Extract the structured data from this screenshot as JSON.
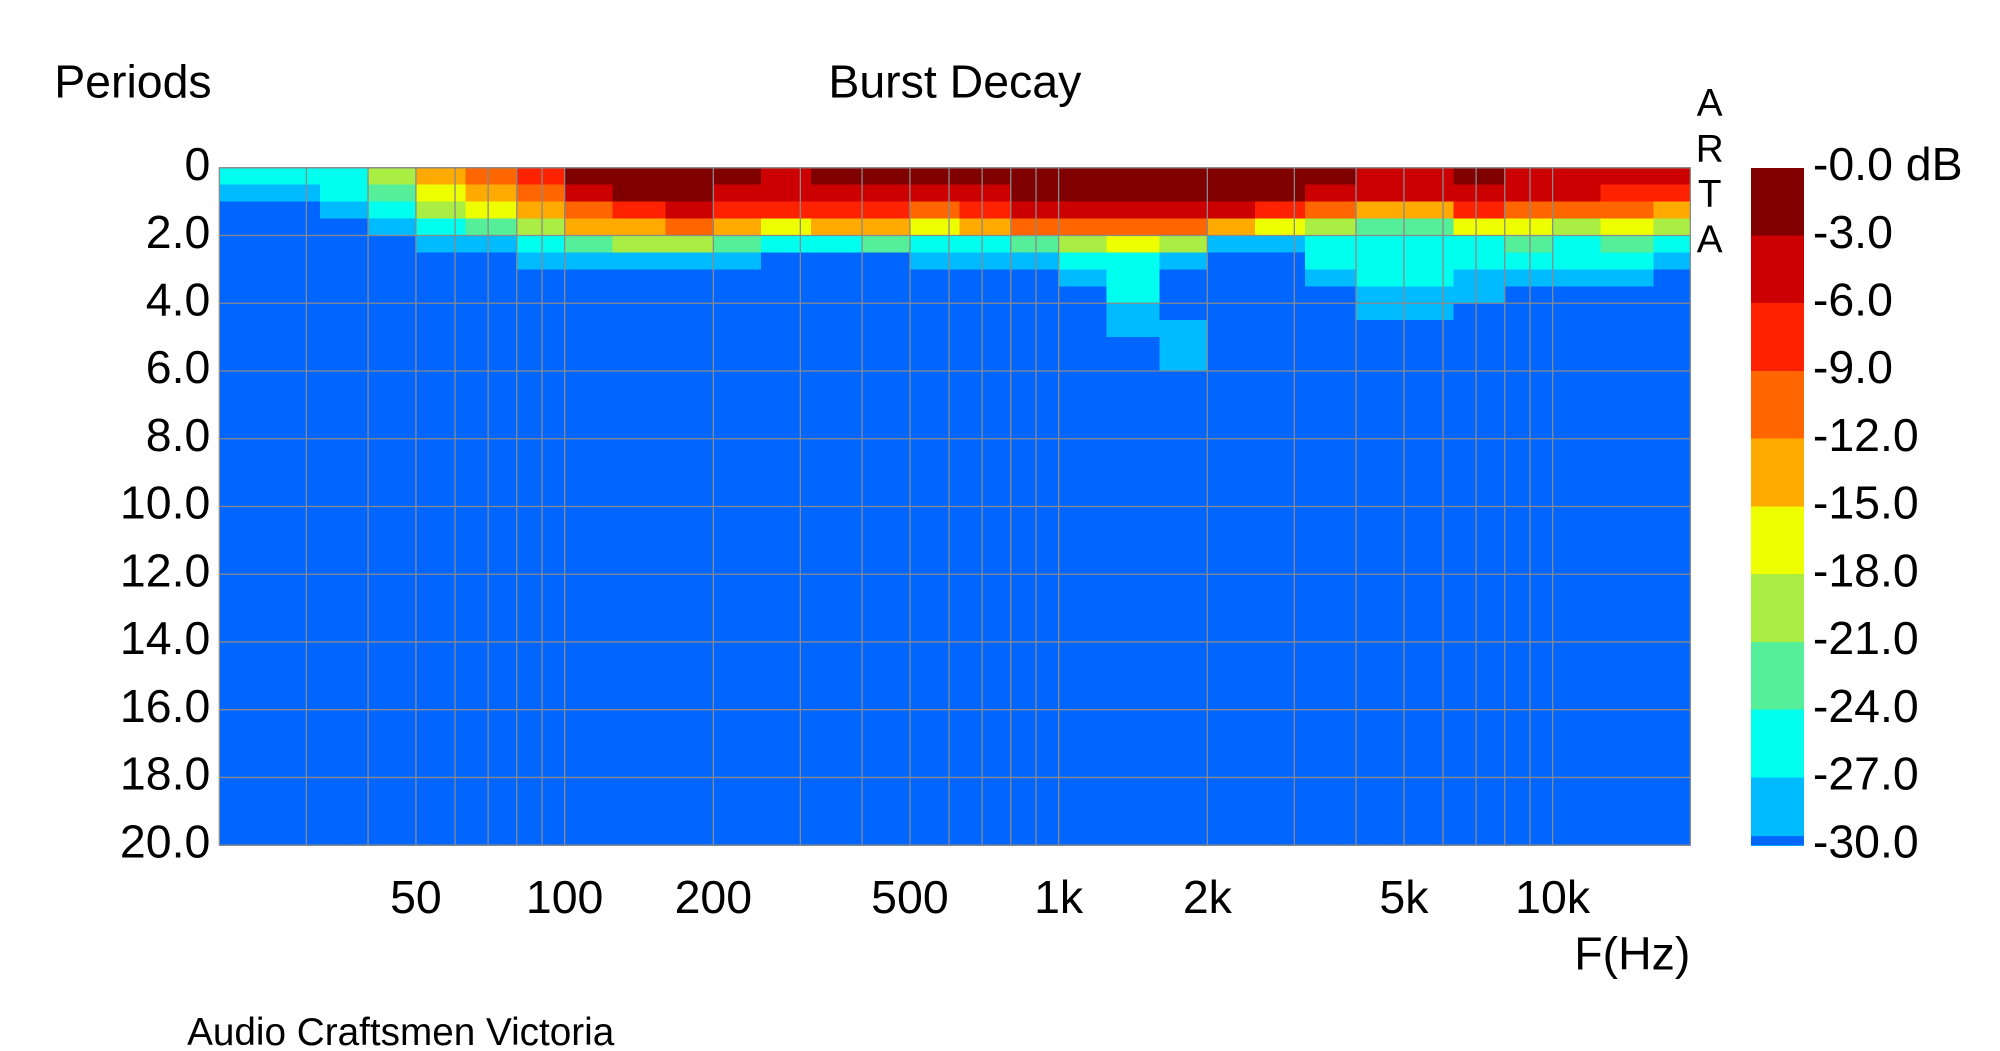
{
  "chart_data": {
    "type": "heatmap",
    "title": "Burst Decay",
    "y_label": "Periods",
    "x_label": "F(Hz)",
    "watermark": "ARTA",
    "footer": "Audio Craftsmen Victoria",
    "x_log": true,
    "xlim": [
      20,
      19000
    ],
    "xticks": [
      50,
      100,
      200,
      500,
      {
        "value": 1000,
        "label": "1k"
      },
      {
        "value": 2000,
        "label": "2k"
      },
      {
        "value": 5000,
        "label": "5k"
      },
      {
        "value": 10000,
        "label": "10k"
      }
    ],
    "x_minor_grid": [
      30,
      40,
      60,
      70,
      80,
      90,
      300,
      400,
      600,
      700,
      800,
      900,
      3000,
      4000,
      6000,
      7000,
      8000,
      9000
    ],
    "ylim": [
      20,
      0
    ],
    "yticks": [
      0,
      {
        "value": 2,
        "label": "2.0"
      },
      {
        "value": 4,
        "label": "4.0"
      },
      {
        "value": 6,
        "label": "6.0"
      },
      {
        "value": 8,
        "label": "8.0"
      },
      {
        "value": 10,
        "label": "10.0"
      },
      {
        "value": 12,
        "label": "12.0"
      },
      {
        "value": 14,
        "label": "14.0"
      },
      {
        "value": 16,
        "label": "16.0"
      },
      {
        "value": 18,
        "label": "18.0"
      },
      {
        "value": 20,
        "label": "20.0"
      }
    ],
    "grid": true,
    "x_bins": [
      20,
      25,
      32,
      40,
      50,
      63,
      80,
      100,
      125,
      160,
      200,
      250,
      315,
      400,
      500,
      630,
      800,
      1000,
      1250,
      1600,
      2000,
      2500,
      3150,
      4000,
      5000,
      6300,
      8000,
      10000,
      12500,
      16000,
      19000
    ],
    "y_bins": [
      0,
      0.5,
      1,
      1.5,
      2,
      2.5,
      3,
      3.5,
      4,
      4.5,
      5,
      5.5,
      6,
      20
    ],
    "z": [
      [
        -25,
        -28,
        -33,
        -33,
        -33,
        -33,
        -33,
        -33,
        -33,
        -33,
        -33,
        -33,
        -33
      ],
      [
        -25,
        -28,
        -33,
        -33,
        -33,
        -33,
        -33,
        -33,
        -33,
        -33,
        -33,
        -33,
        -33
      ],
      [
        -25,
        -25,
        -28,
        -33,
        -33,
        -33,
        -33,
        -33,
        -33,
        -33,
        -33,
        -33,
        -33
      ],
      [
        -19,
        -22,
        -25,
        -28,
        -33,
        -33,
        -33,
        -33,
        -33,
        -33,
        -33,
        -33,
        -33
      ],
      [
        -14,
        -16,
        -19,
        -24,
        -28,
        -33,
        -33,
        -33,
        -33,
        -33,
        -33,
        -33,
        -33
      ],
      [
        -10,
        -13,
        -16,
        -22,
        -27,
        -33,
        -33,
        -33,
        -33,
        -33,
        -33,
        -33,
        -33
      ],
      [
        -7,
        -9,
        -13,
        -18,
        -25,
        -28,
        -33,
        -33,
        -33,
        -33,
        -33,
        -33,
        -33
      ],
      [
        -2,
        -5,
        -9,
        -14,
        -22,
        -28,
        -33,
        -33,
        -33,
        -33,
        -33,
        -33,
        -33
      ],
      [
        -1,
        -2,
        -6,
        -12,
        -20,
        -27,
        -33,
        -33,
        -33,
        -33,
        -33,
        -33,
        -33
      ],
      [
        -1,
        -2,
        -5,
        -11,
        -20,
        -27,
        -33,
        -33,
        -33,
        -33,
        -33,
        -33,
        -33
      ],
      [
        -2,
        -4,
        -7,
        -13,
        -22,
        -28,
        -33,
        -33,
        -33,
        -33,
        -33,
        -33,
        -33
      ],
      [
        -4,
        -5,
        -8,
        -15,
        -26,
        -33,
        -33,
        -33,
        -33,
        -33,
        -33,
        -33,
        -33
      ],
      [
        -2,
        -4,
        -7,
        -13,
        -24,
        -33,
        -33,
        -33,
        -33,
        -33,
        -33,
        -33,
        -33
      ],
      [
        -1,
        -4,
        -6,
        -12,
        -22,
        -33,
        -33,
        -33,
        -33,
        -33,
        -33,
        -33,
        -33
      ],
      [
        -2,
        -5,
        -9,
        -16,
        -25,
        -28,
        -33,
        -33,
        -33,
        -33,
        -33,
        -33,
        -33
      ],
      [
        -1,
        -3,
        -7,
        -14,
        -24,
        -28,
        -33,
        -33,
        -33,
        -33,
        -33,
        -33,
        -33
      ],
      [
        -1,
        -2,
        -5,
        -11,
        -22,
        -27,
        -33,
        -33,
        -33,
        -33,
        -33,
        -33,
        -33
      ],
      [
        -1,
        -1,
        -4,
        -9,
        -18,
        -25,
        -28,
        -33,
        -33,
        -33,
        -33,
        -33,
        -33
      ],
      [
        -1,
        -2,
        -5,
        -10,
        -17,
        -24,
        -26,
        -26,
        -28,
        -28,
        -33,
        -33,
        -33
      ],
      [
        -1,
        -2,
        -4,
        -9,
        -20,
        -28,
        -33,
        -33,
        -33,
        -28,
        -28,
        -28,
        -33
      ],
      [
        -1,
        -2,
        -5,
        -12,
        -27,
        -33,
        -33,
        -33,
        -33,
        -33,
        -33,
        -33,
        -33
      ],
      [
        -1,
        -2,
        -6,
        -15,
        -28,
        -33,
        -33,
        -33,
        -33,
        -33,
        -33,
        -33,
        -33
      ],
      [
        -2,
        -4,
        -9,
        -18,
        -25,
        -26,
        -28,
        -33,
        -33,
        -33,
        -33,
        -33,
        -33
      ],
      [
        -3,
        -5,
        -12,
        -21,
        -25,
        -26,
        -25,
        -28,
        -28,
        -33,
        -33,
        -33,
        -33
      ],
      [
        -3,
        -5,
        -13,
        -22,
        -25,
        -26,
        -25,
        -28,
        -28,
        -33,
        -33,
        -33,
        -33
      ],
      [
        -2,
        -4,
        -8,
        -16,
        -24,
        -25,
        -27,
        -28,
        -33,
        -33,
        -33,
        -33,
        -33
      ],
      [
        -3,
        -5,
        -9,
        -17,
        -23,
        -25,
        -28,
        -33,
        -33,
        -33,
        -33,
        -33,
        -33
      ],
      [
        -3,
        -5,
        -10,
        -18,
        -24,
        -26,
        -28,
        -33,
        -33,
        -33,
        -33,
        -33,
        -33
      ],
      [
        -4,
        -6,
        -10,
        -17,
        -22,
        -26,
        -28,
        -33,
        -33,
        -33,
        -33,
        -33,
        -33
      ],
      [
        -5,
        -7,
        -12,
        -20,
        -26,
        -28,
        -33,
        -33,
        -33,
        -33,
        -33,
        -33,
        -33
      ]
    ],
    "colorbar": {
      "ticks": [
        {
          "value": 0,
          "label": "-0.0 dB"
        },
        {
          "value": -3,
          "label": "-3.0"
        },
        {
          "value": -6,
          "label": "-6.0"
        },
        {
          "value": -9,
          "label": "-9.0"
        },
        {
          "value": -12,
          "label": "-12.0"
        },
        {
          "value": -15,
          "label": "-15.0"
        },
        {
          "value": -18,
          "label": "-18.0"
        },
        {
          "value": -21,
          "label": "-21.0"
        },
        {
          "value": -24,
          "label": "-24.0"
        },
        {
          "value": -27,
          "label": "-27.0"
        },
        {
          "value": -30,
          "label": "-30.0"
        }
      ],
      "colors": [
        "#800000",
        "#cc0000",
        "#ff2200",
        "#ff6600",
        "#ffaa00",
        "#eeff00",
        "#aaee44",
        "#55ee99",
        "#00ffee",
        "#00bbff"
      ],
      "under_color": "#0066ff"
    }
  }
}
